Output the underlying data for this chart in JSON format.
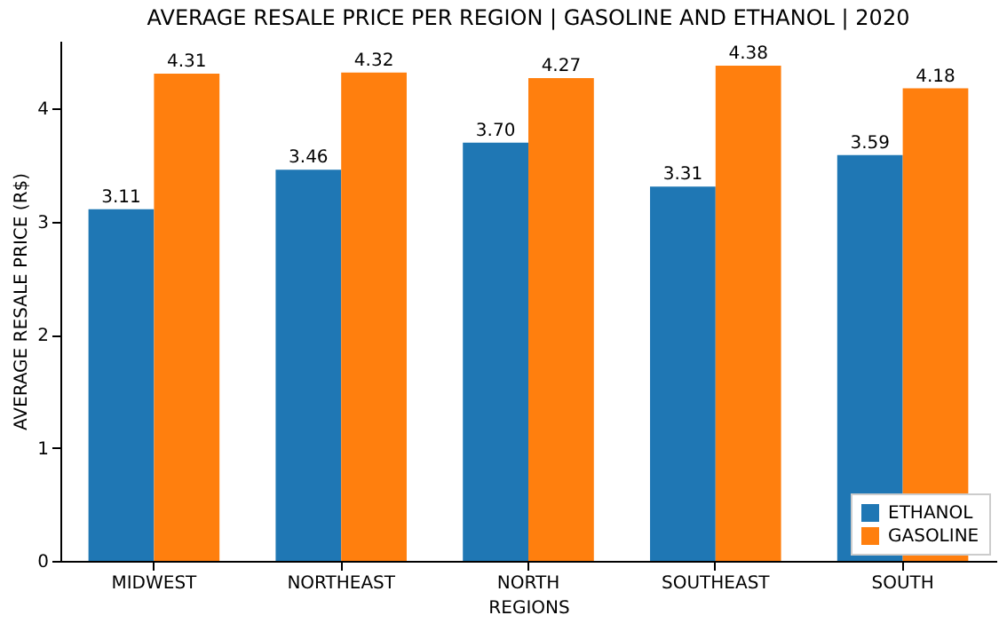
{
  "chart_data": {
    "type": "bar",
    "title": "AVERAGE RESALE PRICE PER REGION | GASOLINE AND ETHANOL | 2020",
    "xlabel": "REGIONS",
    "ylabel": "AVERAGE RESALE PRICE (R$)",
    "categories": [
      "MIDWEST",
      "NORTHEAST",
      "NORTH",
      "SOUTHEAST",
      "SOUTH"
    ],
    "series": [
      {
        "name": "ETHANOL",
        "color": "#1f77b4",
        "values": [
          3.11,
          3.46,
          3.7,
          3.31,
          3.59
        ],
        "value_labels": [
          "3.11",
          "3.46",
          "3.70",
          "3.31",
          "3.59"
        ]
      },
      {
        "name": "GASOLINE",
        "color": "#ff7f0e",
        "values": [
          4.31,
          4.32,
          4.27,
          4.38,
          4.18
        ],
        "value_labels": [
          "4.31",
          "4.32",
          "4.27",
          "4.38",
          "4.18"
        ]
      }
    ],
    "ylim": [
      0,
      4.6
    ],
    "yticks": [
      0,
      1,
      2,
      3,
      4
    ],
    "grid": false,
    "legend": "bottom right"
  }
}
